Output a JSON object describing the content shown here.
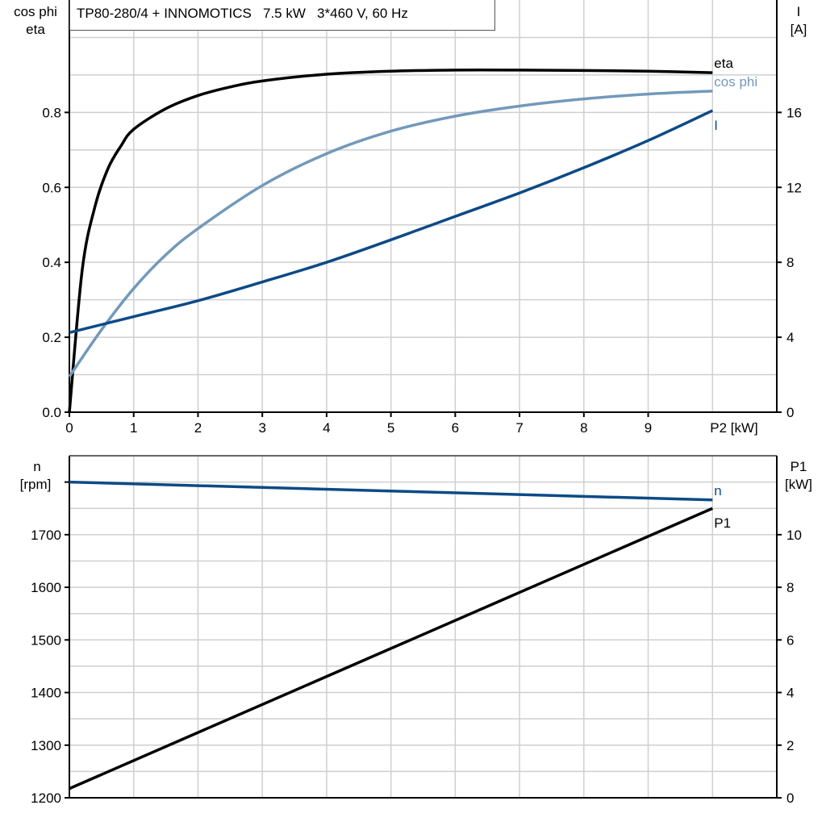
{
  "chart_data": [
    {
      "type": "line",
      "title": "TP80-280/4 + INNOMOTICS   7.5 kW   3*460 V, 60 Hz",
      "xlabel": "P2 [kW]",
      "ylabel_left": [
        "cos phi",
        "eta"
      ],
      "ylabel_right": [
        "I",
        "[A]"
      ],
      "xlim": [
        0,
        11
      ],
      "ylim_left": [
        0,
        1.1
      ],
      "ylim_right": [
        0,
        22
      ],
      "x_ticks": [
        "0",
        "1",
        "2",
        "3",
        "4",
        "5",
        "6",
        "7",
        "8",
        "9"
      ],
      "y_left_ticks": [
        "0.0",
        "0.2",
        "0.4",
        "0.6",
        "0.8"
      ],
      "y_right_ticks": [
        "0",
        "4",
        "8",
        "12",
        "16"
      ],
      "grid": true,
      "series": [
        {
          "name": "eta",
          "axis": "left",
          "color": "#000000",
          "x": [
            0,
            0.2,
            0.4,
            0.6,
            0.8,
            1,
            1.5,
            2,
            2.5,
            3,
            4,
            5,
            6,
            7,
            8,
            9,
            10
          ],
          "y": [
            0,
            0.38,
            0.55,
            0.65,
            0.71,
            0.755,
            0.81,
            0.845,
            0.868,
            0.884,
            0.902,
            0.91,
            0.913,
            0.913,
            0.912,
            0.91,
            0.906
          ]
        },
        {
          "name": "cos phi",
          "axis": "left",
          "color": "#7399bb",
          "x": [
            0,
            0.5,
            1,
            1.5,
            2,
            3,
            4,
            5,
            6,
            7,
            8,
            9,
            10
          ],
          "y": [
            0.095,
            0.22,
            0.33,
            0.42,
            0.49,
            0.605,
            0.69,
            0.75,
            0.79,
            0.817,
            0.836,
            0.849,
            0.857
          ]
        },
        {
          "name": "I",
          "axis": "right",
          "color": "#0d4a86",
          "x": [
            0,
            1,
            2,
            3,
            4,
            5,
            6,
            7,
            8,
            9,
            10
          ],
          "y": [
            4.25,
            5.1,
            5.95,
            6.95,
            8.0,
            9.2,
            10.45,
            11.7,
            13.05,
            14.5,
            16.1
          ]
        }
      ]
    },
    {
      "type": "line",
      "xlim": [
        0,
        11
      ],
      "ylabel_left": [
        "n",
        "[rpm]"
      ],
      "ylabel_right": [
        "P1",
        "[kW]"
      ],
      "ylim_left": [
        1200,
        1850
      ],
      "ylim_right": [
        0,
        13
      ],
      "y_left_ticks": [
        "1200",
        "1300",
        "1400",
        "1500",
        "1600",
        "1700"
      ],
      "y_right_ticks": [
        "0",
        "2",
        "4",
        "6",
        "8",
        "10"
      ],
      "grid": true,
      "series": [
        {
          "name": "n",
          "axis": "left",
          "color": "#0d4a86",
          "x": [
            0,
            10
          ],
          "y": [
            1800,
            1766
          ]
        },
        {
          "name": "P1",
          "axis": "right",
          "color": "#000000",
          "x": [
            0,
            10
          ],
          "y": [
            0.35,
            11.0
          ]
        }
      ]
    }
  ]
}
